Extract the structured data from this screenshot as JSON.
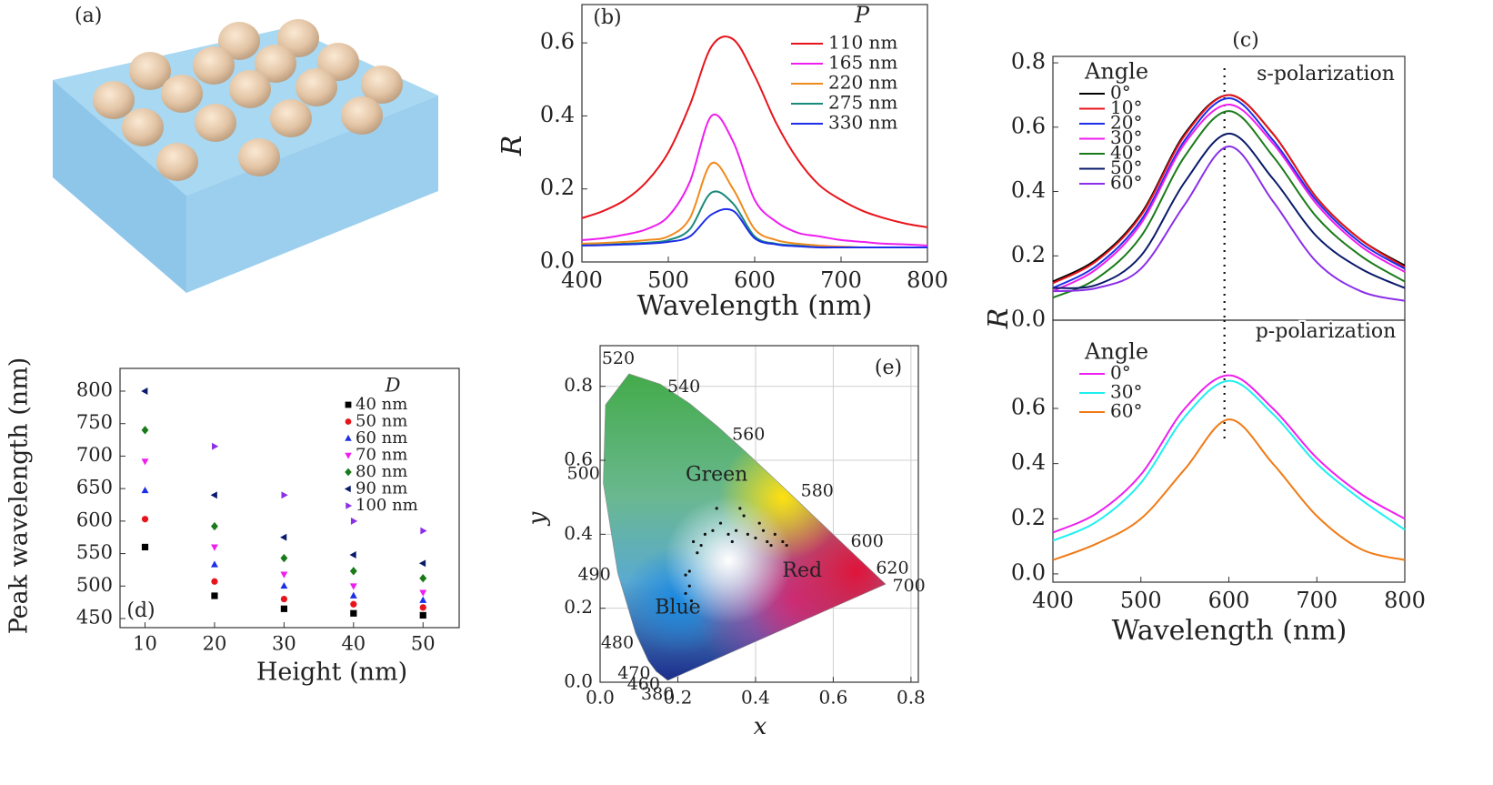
{
  "image_panel": {
    "label": "(a)"
  },
  "chart_data": [
    {
      "type": "line",
      "panel_label": "(b)",
      "legend_title": "P",
      "x_label": "Wavelength (nm)",
      "y_label": "R",
      "x": [
        400,
        425,
        450,
        475,
        500,
        525,
        550,
        575,
        600,
        625,
        650,
        675,
        700,
        725,
        750,
        775,
        800
      ],
      "series": [
        {
          "name": "110 nm",
          "color": "#e8141c",
          "values": [
            0.12,
            0.14,
            0.17,
            0.22,
            0.3,
            0.43,
            0.59,
            0.61,
            0.51,
            0.38,
            0.28,
            0.21,
            0.17,
            0.14,
            0.12,
            0.105,
            0.095
          ]
        },
        {
          "name": "165 nm",
          "color": "#ee1ef0",
          "values": [
            0.06,
            0.065,
            0.075,
            0.09,
            0.125,
            0.22,
            0.4,
            0.33,
            0.17,
            0.11,
            0.08,
            0.07,
            0.06,
            0.055,
            0.05,
            0.048,
            0.045
          ]
        },
        {
          "name": "220 nm",
          "color": "#f08a1c",
          "values": [
            0.05,
            0.052,
            0.055,
            0.06,
            0.07,
            0.12,
            0.27,
            0.2,
            0.09,
            0.06,
            0.05,
            0.045,
            0.042,
            0.04,
            0.04,
            0.04,
            0.04
          ]
        },
        {
          "name": "275 nm",
          "color": "#1a8a7a",
          "values": [
            0.045,
            0.047,
            0.05,
            0.053,
            0.06,
            0.09,
            0.19,
            0.16,
            0.07,
            0.05,
            0.045,
            0.04,
            0.04,
            0.04,
            0.04,
            0.04,
            0.04
          ]
        },
        {
          "name": "330 nm",
          "color": "#1c2ee8",
          "values": [
            0.045,
            0.046,
            0.048,
            0.05,
            0.055,
            0.07,
            0.13,
            0.14,
            0.065,
            0.048,
            0.043,
            0.04,
            0.04,
            0.04,
            0.04,
            0.04,
            0.04
          ]
        }
      ],
      "xlim": [
        400,
        800
      ],
      "ylim": [
        0,
        0.705
      ],
      "xticks": [
        400,
        500,
        600,
        700,
        800
      ],
      "yticks": [
        {
          "value": 0,
          "label": "0.0"
        },
        0.2,
        0.4,
        0.6
      ]
    },
    {
      "type": "line",
      "panel_label": "(c)",
      "annotation": "s-polarization",
      "legend_title": "Angle",
      "y_label": "R",
      "reference_x": 595,
      "x": [
        400,
        450,
        500,
        550,
        600,
        650,
        700,
        750,
        800
      ],
      "series": [
        {
          "name": "0°",
          "color": "#000000",
          "values": [
            0.12,
            0.19,
            0.33,
            0.58,
            0.7,
            0.58,
            0.38,
            0.25,
            0.17
          ]
        },
        {
          "name": "10°",
          "color": "#e8141c",
          "values": [
            0.115,
            0.185,
            0.325,
            0.575,
            0.7,
            0.58,
            0.38,
            0.25,
            0.165
          ]
        },
        {
          "name": "20°",
          "color": "#1c2ee8",
          "values": [
            0.1,
            0.17,
            0.31,
            0.56,
            0.69,
            0.56,
            0.37,
            0.24,
            0.16
          ]
        },
        {
          "name": "30°",
          "color": "#ee1ef0",
          "values": [
            0.09,
            0.16,
            0.3,
            0.55,
            0.67,
            0.55,
            0.36,
            0.23,
            0.15
          ]
        },
        {
          "name": "40°",
          "color": "#1a7a1a",
          "values": [
            0.07,
            0.13,
            0.26,
            0.51,
            0.65,
            0.51,
            0.32,
            0.2,
            0.12
          ]
        },
        {
          "name": "50°",
          "color": "#0a1a6a",
          "values": [
            0.1,
            0.11,
            0.2,
            0.43,
            0.58,
            0.44,
            0.26,
            0.16,
            0.1
          ]
        },
        {
          "name": "60°",
          "color": "#8a2ee8",
          "values": [
            0.09,
            0.1,
            0.16,
            0.36,
            0.54,
            0.37,
            0.18,
            0.09,
            0.06
          ]
        }
      ],
      "xlim": [
        400,
        800
      ],
      "ylim": [
        0,
        0.82
      ],
      "yticks": [
        {
          "value": 0,
          "label": "0.0"
        },
        0.2,
        0.4,
        0.6,
        0.8
      ]
    },
    {
      "type": "line",
      "annotation": "p-polarization",
      "legend_title": "Angle",
      "x_label": "Wavelength (nm)",
      "reference_x": 595,
      "x": [
        400,
        450,
        500,
        550,
        600,
        650,
        700,
        750,
        800
      ],
      "series": [
        {
          "name": "0°",
          "color": "#ee1ef0",
          "values": [
            0.15,
            0.22,
            0.36,
            0.6,
            0.72,
            0.6,
            0.42,
            0.29,
            0.2
          ]
        },
        {
          "name": "30°",
          "color": "#1ef0f0",
          "values": [
            0.12,
            0.19,
            0.33,
            0.57,
            0.7,
            0.58,
            0.4,
            0.27,
            0.16
          ]
        },
        {
          "name": "60°",
          "color": "#f07a14",
          "values": [
            0.05,
            0.11,
            0.2,
            0.38,
            0.56,
            0.4,
            0.21,
            0.09,
            0.05
          ]
        }
      ],
      "xlim": [
        400,
        800
      ],
      "ylim": [
        -0.03,
        0.92
      ],
      "xticks": [
        400,
        500,
        600,
        700,
        800
      ],
      "yticks": [
        {
          "value": 0,
          "label": "0.0"
        },
        0.2,
        0.4,
        0.6
      ]
    },
    {
      "type": "scatter",
      "panel_label": "(d)",
      "legend_title": "D",
      "x_label": "Height (nm)",
      "y_label": "Peak wavelength (nm)",
      "x": [
        10,
        20,
        30,
        40,
        50
      ],
      "series": [
        {
          "name": "40 nm",
          "color": "#000000",
          "marker": "square",
          "values": [
            560,
            485,
            465,
            458,
            455
          ]
        },
        {
          "name": "50 nm",
          "color": "#e8141c",
          "marker": "circle",
          "values": [
            603,
            507,
            480,
            472,
            467
          ]
        },
        {
          "name": "60 nm",
          "color": "#1c2ee8",
          "marker": "triangle-up",
          "values": [
            647,
            533,
            500,
            485,
            478
          ]
        },
        {
          "name": "70 nm",
          "color": "#ee1ef0",
          "marker": "triangle-down",
          "values": [
            692,
            560,
            518,
            500,
            490
          ]
        },
        {
          "name": "80 nm",
          "color": "#1a7a1a",
          "marker": "diamond",
          "values": [
            740,
            592,
            543,
            523,
            512
          ]
        },
        {
          "name": "90 nm",
          "color": "#0a1a6a",
          "marker": "triangle-left",
          "values": [
            800,
            640,
            575,
            548,
            535
          ]
        },
        {
          "name": "100 nm",
          "color": "#8a2ee8",
          "marker": "triangle-right",
          "values": [
            null,
            715,
            640,
            600,
            585
          ]
        }
      ],
      "xlim": [
        6.4,
        55.2
      ],
      "ylim": [
        436,
        835
      ],
      "xticks": [
        10,
        20,
        30,
        40,
        50
      ],
      "yticks": [
        450,
        500,
        550,
        600,
        650,
        700,
        750,
        800
      ]
    },
    {
      "type": "chromaticity",
      "panel_label": "(e)",
      "x_label": "x",
      "y_label": "y",
      "grid": true,
      "region_labels": [
        "Green",
        "Blue",
        "Red"
      ],
      "locus": {
        "x": [
          0.1741,
          0.144,
          0.1241,
          0.0913,
          0.0454,
          0.0082,
          0.0139,
          0.0743,
          0.1547,
          0.2296,
          0.3016,
          0.3731,
          0.4441,
          0.5125,
          0.5752,
          0.627,
          0.6915,
          0.7347
        ],
        "y": [
          0.005,
          0.0297,
          0.0578,
          0.1327,
          0.295,
          0.5384,
          0.7502,
          0.8338,
          0.8059,
          0.7543,
          0.6923,
          0.6245,
          0.5547,
          0.4866,
          0.4242,
          0.3725,
          0.3083,
          0.2653
        ],
        "labels": [
          380,
          460,
          470,
          480,
          490,
          500,
          null,
          520,
          null,
          540,
          null,
          560,
          null,
          580,
          null,
          600,
          620,
          700
        ]
      },
      "points": {
        "x": [
          0.23,
          0.22,
          0.235,
          0.22,
          0.23,
          0.25,
          0.24,
          0.26,
          0.27,
          0.29,
          0.3,
          0.31,
          0.33,
          0.35,
          0.37,
          0.36,
          0.38,
          0.41,
          0.4,
          0.42,
          0.43,
          0.45,
          0.47,
          0.44,
          0.48,
          0.34
        ],
        "y": [
          0.26,
          0.24,
          0.22,
          0.29,
          0.3,
          0.35,
          0.38,
          0.37,
          0.4,
          0.41,
          0.47,
          0.43,
          0.4,
          0.41,
          0.45,
          0.47,
          0.4,
          0.43,
          0.39,
          0.41,
          0.38,
          0.4,
          0.38,
          0.37,
          0.37,
          0.38
        ]
      },
      "xlim": [
        0,
        0.819
      ],
      "ylim": [
        0,
        0.91
      ],
      "xticks": [
        {
          "value": 0,
          "label": "0.0"
        },
        0.2,
        0.4,
        0.6,
        0.8
      ],
      "yticks": [
        {
          "value": 0,
          "label": "0.0"
        },
        0.2,
        0.4,
        0.6,
        0.8
      ]
    }
  ]
}
